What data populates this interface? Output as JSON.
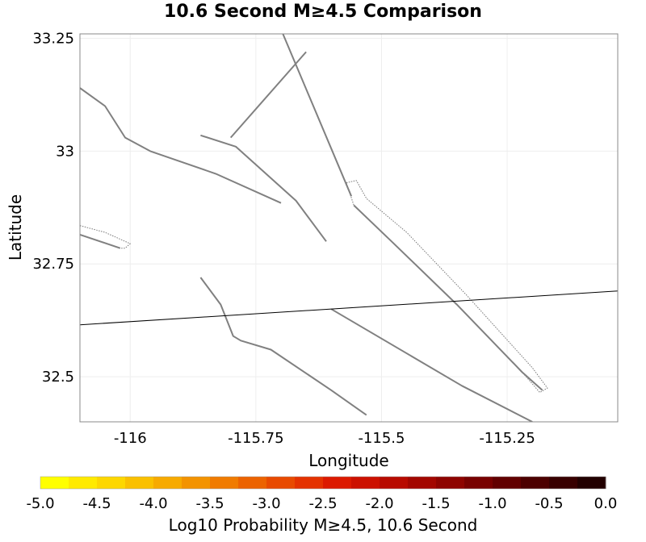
{
  "title": "10.6 Second M≥4.5 Comparison",
  "map": {
    "xlabel": "Longitude",
    "ylabel": "Latitude",
    "xlim": [
      -116.1,
      -115.03
    ],
    "ylim": [
      32.4,
      33.26
    ],
    "xticks": [
      {
        "value": -116,
        "label": "-116"
      },
      {
        "value": -115.75,
        "label": "-115.75"
      },
      {
        "value": -115.5,
        "label": "-115.5"
      },
      {
        "value": -115.25,
        "label": "-115.25"
      }
    ],
    "yticks": [
      {
        "value": 33.25,
        "label": "33.25"
      },
      {
        "value": 33,
        "label": "33"
      },
      {
        "value": 32.75,
        "label": "32.75"
      },
      {
        "value": 32.5,
        "label": "32.5"
      }
    ],
    "fault_color": "#808080",
    "faults": [
      [
        [
          -115.86,
          33.035
        ],
        [
          -115.79,
          33.01
        ],
        [
          -115.67,
          32.89
        ],
        [
          -115.61,
          32.8
        ]
      ],
      [
        [
          -116.1,
          33.14
        ],
        [
          -116.05,
          33.1
        ],
        [
          -116.01,
          33.03
        ],
        [
          -115.96,
          33.0
        ],
        [
          -115.83,
          32.95
        ],
        [
          -115.7,
          32.885
        ]
      ],
      [
        [
          -115.8,
          33.03
        ],
        [
          -115.65,
          33.22
        ]
      ],
      [
        [
          -115.7,
          33.27
        ],
        [
          -115.56,
          32.9
        ]
      ],
      [
        [
          -115.555,
          32.88
        ],
        [
          -115.48,
          32.8
        ],
        [
          -115.35,
          32.66
        ],
        [
          -115.22,
          32.51
        ],
        [
          -115.18,
          32.47
        ]
      ],
      [
        [
          -115.6,
          32.65
        ],
        [
          -115.34,
          32.48
        ],
        [
          -115.2,
          32.4
        ]
      ],
      [
        [
          -115.86,
          32.72
        ],
        [
          -115.82,
          32.66
        ],
        [
          -115.795,
          32.59
        ],
        [
          -115.78,
          32.58
        ],
        [
          -115.72,
          32.56
        ],
        [
          -115.6,
          32.47
        ],
        [
          -115.53,
          32.415
        ]
      ],
      [
        [
          -116.1,
          32.815
        ],
        [
          -116.02,
          32.785
        ]
      ]
    ],
    "fault_planes": [
      [
        [
          -115.57,
          32.93
        ],
        [
          -115.55,
          32.935
        ],
        [
          -115.53,
          32.895
        ],
        [
          -115.45,
          32.82
        ],
        [
          -115.33,
          32.68
        ],
        [
          -115.2,
          32.52
        ],
        [
          -115.17,
          32.475
        ],
        [
          -115.185,
          32.465
        ],
        [
          -115.22,
          32.51
        ],
        [
          -115.35,
          32.66
        ],
        [
          -115.48,
          32.8
        ],
        [
          -115.555,
          32.88
        ]
      ],
      [
        [
          -116.1,
          32.835
        ],
        [
          -116.05,
          32.82
        ],
        [
          -116.0,
          32.795
        ],
        [
          -116.01,
          32.785
        ],
        [
          -116.02,
          32.785
        ],
        [
          -116.1,
          32.815
        ]
      ]
    ],
    "section_line": [
      [
        -116.1,
        32.615
      ],
      [
        -115.03,
        32.69
      ]
    ]
  },
  "colorbar": {
    "label": "Log10 Probability M≥4.5, 10.6 Second",
    "min": -5.0,
    "max": 0.0,
    "ticks": [
      "-5.0",
      "-4.5",
      "-4.0",
      "-3.5",
      "-3.0",
      "-2.5",
      "-2.0",
      "-1.5",
      "-1.0",
      "-0.5",
      "0.0"
    ],
    "colors": [
      "#ffff00",
      "#ffea00",
      "#fdd700",
      "#fac000",
      "#f7aa00",
      "#f39300",
      "#f07b00",
      "#ec6300",
      "#e84a00",
      "#e43200",
      "#dc1a00",
      "#cc1100",
      "#b80b00",
      "#a30700",
      "#8e0400",
      "#780100",
      "#620000",
      "#4c0000",
      "#380000",
      "#220000"
    ]
  }
}
